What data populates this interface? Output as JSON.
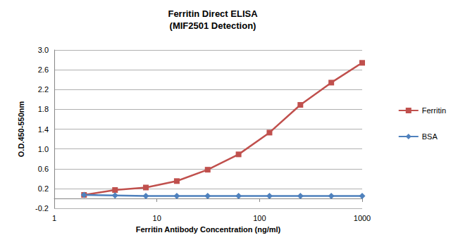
{
  "chart_data": {
    "type": "line",
    "title": "Ferritin Direct ELISA",
    "subtitle": "(MIF2501 Detection)",
    "x_label": "Ferritin Antibody Concentration (ng/ml)",
    "y_label": "O.D.450-550nm",
    "x": [
      1.95,
      3.91,
      7.81,
      15.63,
      31.25,
      62.5,
      125,
      250,
      500,
      1000
    ],
    "series": [
      {
        "name": "Ferritin",
        "color": "#c0504d",
        "marker": "square",
        "values": [
          0.07,
          0.17,
          0.22,
          0.35,
          0.58,
          0.89,
          1.33,
          1.89,
          2.34,
          2.74
        ]
      },
      {
        "name": "BSA",
        "color": "#4f81bd",
        "marker": "diamond",
        "values": [
          0.07,
          0.06,
          0.05,
          0.05,
          0.05,
          0.05,
          0.05,
          0.05,
          0.05,
          0.05
        ]
      }
    ],
    "log": "x",
    "xlim": [
      1,
      1000
    ],
    "xticks": [
      1,
      10,
      100,
      1000
    ],
    "ylim": [
      -0.2,
      3.0
    ],
    "yticks": [
      -0.2,
      0.2,
      0.6,
      {
        "value": 1,
        "label": "1.0"
      },
      1.4,
      1.8,
      2.2,
      2.6,
      {
        "value": 3,
        "label": "3.0"
      }
    ],
    "grid": true,
    "legend": "right"
  }
}
